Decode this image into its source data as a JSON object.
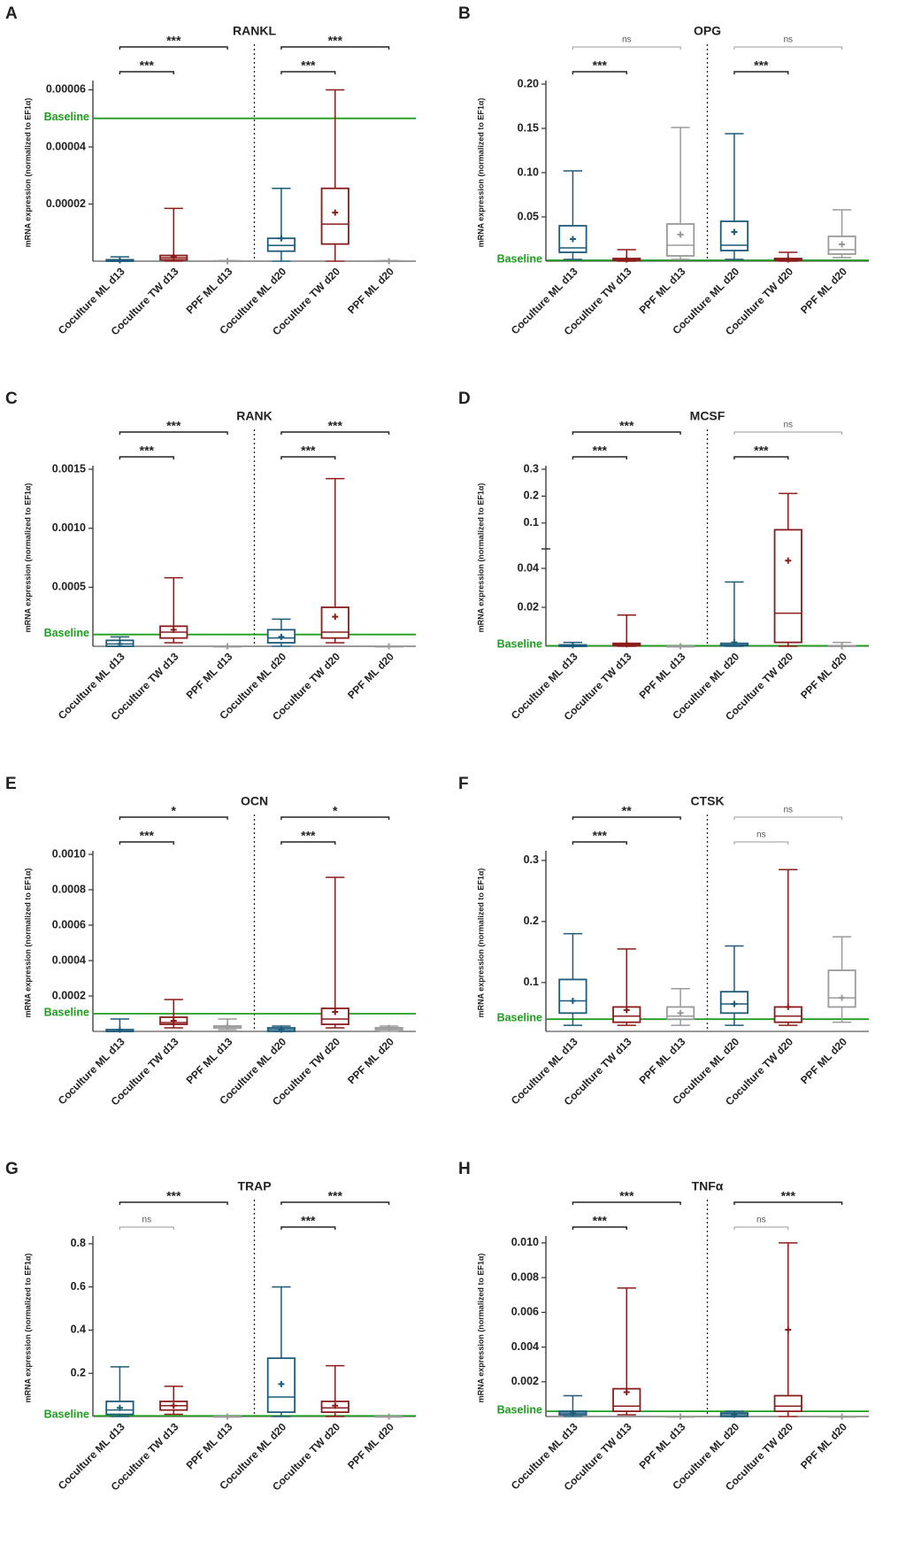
{
  "chart_data": [
    {
      "type": "box",
      "panel": "A",
      "title": "RANKL",
      "y_label": "mRNA expression (normalized to EF1α)",
      "categories": [
        "Coculture ML d13",
        "Coculture TW d13",
        "PPF ML d13",
        "Coculture ML d20",
        "Coculture TW d20",
        "PPF ML d20"
      ],
      "colors": [
        "#1c5b7a",
        "#8b1c1c",
        "#9a9a9a",
        "#1c5b7a",
        "#8b1c1c",
        "#9a9a9a"
      ],
      "boxes": [
        {
          "min": 0,
          "q1": 0,
          "median": 2e-07,
          "q3": 5e-07,
          "max": 1.5e-06,
          "mean": 3e-07
        },
        {
          "min": 0,
          "q1": 5e-07,
          "median": 1.2e-06,
          "q3": 2e-06,
          "max": 1.85e-05,
          "mean": 1.5e-06
        },
        {
          "min": 0,
          "q1": 0,
          "median": 0,
          "q3": 1e-07,
          "max": 2e-07,
          "mean": 0
        },
        {
          "min": 0,
          "q1": 3.5e-06,
          "median": 5.5e-06,
          "q3": 8e-06,
          "max": 2.55e-05,
          "mean": 8e-06
        },
        {
          "min": 0,
          "q1": 6e-06,
          "median": 1.3e-05,
          "q3": 2.55e-05,
          "max": 6e-05,
          "mean": 1.7e-05
        },
        {
          "min": 0,
          "q1": 0,
          "median": 0,
          "q3": 1e-07,
          "max": 2e-07,
          "mean": 0
        }
      ],
      "ylim": [
        0,
        6.2e-05
      ],
      "yticks": [
        2e-05,
        4e-05,
        6e-05
      ],
      "baseline": {
        "label": "Baseline",
        "value": 5e-05,
        "color": "#1e9e1e"
      },
      "annotations": [
        {
          "text": "***",
          "from": 0,
          "to": 1
        },
        {
          "text": "***",
          "from": 0,
          "to": 2
        },
        {
          "text": "***",
          "from": 3,
          "to": 4
        },
        {
          "text": "***",
          "from": 3,
          "to": 5
        }
      ]
    },
    {
      "type": "box",
      "panel": "B",
      "title": "OPG",
      "y_label": "mRNA expression (normalized to EF1α)",
      "categories": [
        "Coculture ML d13",
        "Coculture TW d13",
        "PPF ML d13",
        "Coculture ML d20",
        "Coculture TW d20",
        "PPF ML d20"
      ],
      "colors": [
        "#1c5b7a",
        "#8b1c1c",
        "#9a9a9a",
        "#1c5b7a",
        "#8b1c1c",
        "#9a9a9a"
      ],
      "boxes": [
        {
          "min": 0.002,
          "q1": 0.01,
          "median": 0.015,
          "q3": 0.04,
          "max": 0.102,
          "mean": 0.025
        },
        {
          "min": 0,
          "q1": 0.001,
          "median": 0.002,
          "q3": 0.003,
          "max": 0.013,
          "mean": 0.002
        },
        {
          "min": 0.002,
          "q1": 0.006,
          "median": 0.018,
          "q3": 0.042,
          "max": 0.151,
          "mean": 0.03
        },
        {
          "min": 0.002,
          "q1": 0.012,
          "median": 0.018,
          "q3": 0.045,
          "max": 0.144,
          "mean": 0.033
        },
        {
          "min": 0,
          "q1": 0.001,
          "median": 0.002,
          "q3": 0.003,
          "max": 0.01,
          "mean": 0.002
        },
        {
          "min": 0.004,
          "q1": 0.008,
          "median": 0.013,
          "q3": 0.028,
          "max": 0.058,
          "mean": 0.019
        }
      ],
      "ylim": [
        0,
        0.2
      ],
      "yticks": [
        0.05,
        {
          "value": 0.1,
          "label": "0.10"
        },
        0.15,
        {
          "value": 0.2,
          "label": "0.20"
        }
      ],
      "baseline": {
        "label": "Baseline",
        "value": 0.001,
        "color": "#1e9e1e"
      },
      "annotations": [
        {
          "text": "***",
          "from": 0,
          "to": 1
        },
        {
          "text": "ns",
          "from": 0,
          "to": 2
        },
        {
          "text": "***",
          "from": 3,
          "to": 4
        },
        {
          "text": "ns",
          "from": 3,
          "to": 5
        }
      ]
    },
    {
      "type": "box",
      "panel": "C",
      "title": "RANK",
      "y_label": "mRNA expression (normalized to EF1α)",
      "categories": [
        "Coculture ML d13",
        "Coculture TW d13",
        "PPF ML d13",
        "Coculture ML d20",
        "Coculture TW d20",
        "PPF ML d20"
      ],
      "colors": [
        "#1c5b7a",
        "#8b1c1c",
        "#9a9a9a",
        "#1c5b7a",
        "#8b1c1c",
        "#9a9a9a"
      ],
      "boxes": [
        {
          "min": 0,
          "q1": 0,
          "median": 2e-05,
          "q3": 5e-05,
          "max": 8e-05,
          "mean": 2e-05
        },
        {
          "min": 3e-05,
          "q1": 7e-05,
          "median": 0.00012,
          "q3": 0.00017,
          "max": 0.00058,
          "mean": 0.00014
        },
        {
          "min": 0,
          "q1": 0,
          "median": 0,
          "q3": 0,
          "max": 0,
          "mean": 0
        },
        {
          "min": 0,
          "q1": 3e-05,
          "median": 7e-05,
          "q3": 0.00014,
          "max": 0.00023,
          "mean": 8e-05
        },
        {
          "min": 3e-05,
          "q1": 7e-05,
          "median": 0.00012,
          "q3": 0.00033,
          "max": 0.00142,
          "mean": 0.00025
        },
        {
          "min": 0,
          "q1": 0,
          "median": 0,
          "q3": 0,
          "max": 0,
          "mean": 0
        }
      ],
      "ylim": [
        0,
        0.0015
      ],
      "yticks": [
        0.0005,
        {
          "value": 0.001,
          "label": "0.0010"
        },
        0.0015
      ],
      "baseline": {
        "label": "Baseline",
        "value": 0.0001,
        "color": "#1e9e1e"
      },
      "annotations": [
        {
          "text": "***",
          "from": 0,
          "to": 1
        },
        {
          "text": "***",
          "from": 0,
          "to": 2
        },
        {
          "text": "***",
          "from": 3,
          "to": 4
        },
        {
          "text": "***",
          "from": 3,
          "to": 5
        }
      ]
    },
    {
      "type": "box",
      "panel": "D",
      "title": "MCSF",
      "y_label": "mRNA expression (normalized to EF1α)",
      "categories": [
        "Coculture ML d13",
        "Coculture TW d13",
        "PPF ML d13",
        "Coculture ML d20",
        "Coculture TW d20",
        "PPF ML d20"
      ],
      "colors": [
        "#1c5b7a",
        "#8b1c1c",
        "#9a9a9a",
        "#1c5b7a",
        "#8b1c1c",
        "#9a9a9a"
      ],
      "boxes": [
        {
          "min": 0,
          "q1": 0,
          "median": 0.0003,
          "q3": 0.0007,
          "max": 0.002,
          "mean": 0.0005
        },
        {
          "min": 0,
          "q1": 0.0003,
          "median": 0.0008,
          "q3": 0.0015,
          "max": 0.016,
          "mean": 0.001
        },
        {
          "min": 0,
          "q1": 0,
          "median": 0,
          "q3": 0,
          "max": 0,
          "mean": 0
        },
        {
          "min": 0,
          "q1": 0.0002,
          "median": 0.0007,
          "q3": 0.0015,
          "max": 0.033,
          "mean": 0.002
        },
        {
          "min": 0,
          "q1": 0.002,
          "median": 0.017,
          "q3": 0.075,
          "max": 0.21,
          "mean": 0.044
        },
        {
          "min": 0,
          "q1": 0,
          "median": 0,
          "q3": 0.0003,
          "max": 0.002,
          "mean": 0
        }
      ],
      "ylim": [
        0,
        0.3
      ],
      "ybreak": 0.05,
      "yticks": [
        0.02,
        0.04,
        0.1,
        0.2,
        0.3
      ],
      "baseline": {
        "label": "Baseline",
        "value": 0.0003,
        "color": "#1e9e1e"
      },
      "annotations": [
        {
          "text": "***",
          "from": 0,
          "to": 1
        },
        {
          "text": "***",
          "from": 0,
          "to": 2
        },
        {
          "text": "***",
          "from": 3,
          "to": 4
        },
        {
          "text": "ns",
          "from": 3,
          "to": 5
        }
      ]
    },
    {
      "type": "box",
      "panel": "E",
      "title": "OCN",
      "y_label": "mRNA expression (normalized to EF1α)",
      "categories": [
        "Coculture ML d13",
        "Coculture TW d13",
        "PPF ML d13",
        "Coculture ML d20",
        "Coculture TW d20",
        "PPF ML d20"
      ],
      "colors": [
        "#1c5b7a",
        "#8b1c1c",
        "#9a9a9a",
        "#1c5b7a",
        "#8b1c1c",
        "#9a9a9a"
      ],
      "boxes": [
        {
          "min": 0,
          "q1": 0,
          "median": 0,
          "q3": 1e-05,
          "max": 7e-05,
          "mean": 1e-05
        },
        {
          "min": 2e-05,
          "q1": 4e-05,
          "median": 5e-05,
          "q3": 8e-05,
          "max": 0.00018,
          "mean": 6e-05
        },
        {
          "min": 1e-05,
          "q1": 2e-05,
          "median": 3e-05,
          "q3": 3e-05,
          "max": 7e-05,
          "mean": 3e-05
        },
        {
          "min": 0,
          "q1": 0,
          "median": 1e-05,
          "q3": 2e-05,
          "max": 3e-05,
          "mean": 1e-05
        },
        {
          "min": 2e-05,
          "q1": 4e-05,
          "median": 7e-05,
          "q3": 0.00013,
          "max": 0.00087,
          "mean": 0.00011
        },
        {
          "min": 0,
          "q1": 1e-05,
          "median": 2e-05,
          "q3": 2e-05,
          "max": 3e-05,
          "mean": 2e-05
        }
      ],
      "ylim": [
        0,
        0.001
      ],
      "yticks": [
        0.0002,
        0.0004,
        0.0006,
        0.0008,
        {
          "value": 0.001,
          "label": "0.0010"
        }
      ],
      "baseline": {
        "label": "Baseline",
        "value": 0.0001,
        "color": "#1e9e1e"
      },
      "annotations": [
        {
          "text": "***",
          "from": 0,
          "to": 1
        },
        {
          "text": "*",
          "from": 0,
          "to": 2
        },
        {
          "text": "***",
          "from": 3,
          "to": 4
        },
        {
          "text": "*",
          "from": 3,
          "to": 5
        }
      ]
    },
    {
      "type": "box",
      "panel": "F",
      "title": "CTSK",
      "y_label": "mRNA expression (normalized to EF1α)",
      "categories": [
        "Coculture ML d13",
        "Coculture TW d13",
        "PPF ML d13",
        "Coculture ML d20",
        "Coculture TW d20",
        "PPF ML d20"
      ],
      "colors": [
        "#1c5b7a",
        "#8b1c1c",
        "#9a9a9a",
        "#1c5b7a",
        "#8b1c1c",
        "#9a9a9a"
      ],
      "boxes": [
        {
          "min": 0.03,
          "q1": 0.05,
          "median": 0.07,
          "q3": 0.105,
          "max": 0.18,
          "mean": 0.07
        },
        {
          "min": 0.03,
          "q1": 0.035,
          "median": 0.045,
          "q3": 0.06,
          "max": 0.155,
          "mean": 0.055
        },
        {
          "min": 0.03,
          "q1": 0.04,
          "median": 0.045,
          "q3": 0.06,
          "max": 0.09,
          "mean": 0.05
        },
        {
          "min": 0.03,
          "q1": 0.05,
          "median": 0.065,
          "q3": 0.085,
          "max": 0.16,
          "mean": 0.065
        },
        {
          "min": 0.03,
          "q1": 0.035,
          "median": 0.045,
          "q3": 0.06,
          "max": 0.285,
          "mean": 0.06
        },
        {
          "min": 0.035,
          "q1": 0.06,
          "median": 0.075,
          "q3": 0.12,
          "max": 0.175,
          "mean": 0.075
        }
      ],
      "ylim": [
        0.02,
        0.31
      ],
      "yticks": [
        0.1,
        0.2,
        0.3
      ],
      "baseline": {
        "label": "Baseline",
        "value": 0.04,
        "color": "#1e9e1e"
      },
      "annotations": [
        {
          "text": "***",
          "from": 0,
          "to": 1
        },
        {
          "text": "**",
          "from": 0,
          "to": 2
        },
        {
          "text": "ns",
          "from": 3,
          "to": 4
        },
        {
          "text": "ns",
          "from": 3,
          "to": 5
        }
      ]
    },
    {
      "type": "box",
      "panel": "G",
      "title": "TRAP",
      "y_label": "mRNA expression (normalized to EF1α)",
      "categories": [
        "Coculture ML d13",
        "Coculture TW d13",
        "PPF ML d13",
        "Coculture ML d20",
        "Coculture TW d20",
        "PPF ML d20"
      ],
      "colors": [
        "#1c5b7a",
        "#8b1c1c",
        "#9a9a9a",
        "#1c5b7a",
        "#8b1c1c",
        "#9a9a9a"
      ],
      "boxes": [
        {
          "min": 0,
          "q1": 0.01,
          "median": 0.03,
          "q3": 0.07,
          "max": 0.23,
          "mean": 0.04
        },
        {
          "min": 0.01,
          "q1": 0.03,
          "median": 0.05,
          "q3": 0.07,
          "max": 0.14,
          "mean": 0.05
        },
        {
          "min": 0,
          "q1": 0,
          "median": 0,
          "q3": 0,
          "max": 0,
          "mean": 0
        },
        {
          "min": 0,
          "q1": 0.02,
          "median": 0.09,
          "q3": 0.27,
          "max": 0.6,
          "mean": 0.15
        },
        {
          "min": 0,
          "q1": 0.02,
          "median": 0.04,
          "q3": 0.07,
          "max": 0.235,
          "mean": 0.05
        },
        {
          "min": 0,
          "q1": 0,
          "median": 0,
          "q3": 0,
          "max": 0,
          "mean": 0
        }
      ],
      "ylim": [
        0,
        0.82
      ],
      "yticks": [
        0.2,
        0.4,
        0.6,
        0.8
      ],
      "baseline": {
        "label": "Baseline",
        "value": 0.003,
        "color": "#1e9e1e"
      },
      "annotations": [
        {
          "text": "ns",
          "from": 0,
          "to": 1
        },
        {
          "text": "***",
          "from": 0,
          "to": 2
        },
        {
          "text": "***",
          "from": 3,
          "to": 4
        },
        {
          "text": "***",
          "from": 3,
          "to": 5
        }
      ]
    },
    {
      "type": "box",
      "panel": "H",
      "title": "TNFα",
      "y_label": "mRNA expression (normalized to EF1α)",
      "categories": [
        "Coculture ML d13",
        "Coculture TW d13",
        "PPF ML d13",
        "Coculture ML d20",
        "Coculture TW d20",
        "PPF ML d20"
      ],
      "colors": [
        "#1c5b7a",
        "#8b1c1c",
        "#9a9a9a",
        "#1c5b7a",
        "#8b1c1c",
        "#9a9a9a"
      ],
      "boxes": [
        {
          "min": 0,
          "q1": 0.0001,
          "median": 0.0002,
          "q3": 0.0003,
          "max": 0.0012,
          "mean": 0.0002
        },
        {
          "min": 0.0001,
          "q1": 0.0003,
          "median": 0.0006,
          "q3": 0.0016,
          "max": 0.0074,
          "mean": 0.0014
        },
        {
          "min": 0,
          "q1": 0,
          "median": 0,
          "q3": 0,
          "max": 0,
          "mean": 0
        },
        {
          "min": 0,
          "q1": 0,
          "median": 0.0001,
          "q3": 0.0002,
          "max": 0.0003,
          "mean": 0.0001
        },
        {
          "min": 0,
          "q1": 0.0003,
          "median": 0.0006,
          "q3": 0.0012,
          "max": 0.01,
          "mean": 0.005
        },
        {
          "min": 0,
          "q1": 0,
          "median": 0,
          "q3": 0,
          "max": 0,
          "mean": 0
        }
      ],
      "ylim": [
        0,
        0.0102
      ],
      "yticks": [
        0.002,
        0.004,
        0.006,
        0.008,
        {
          "value": 0.01,
          "label": "0.010"
        }
      ],
      "baseline": {
        "label": "Baseline",
        "value": 0.0003,
        "color": "#1e9e1e"
      },
      "annotations": [
        {
          "text": "***",
          "from": 0,
          "to": 1
        },
        {
          "text": "***",
          "from": 0,
          "to": 2
        },
        {
          "text": "ns",
          "from": 3,
          "to": 4
        },
        {
          "text": "***",
          "from": 3,
          "to": 5
        }
      ]
    }
  ]
}
